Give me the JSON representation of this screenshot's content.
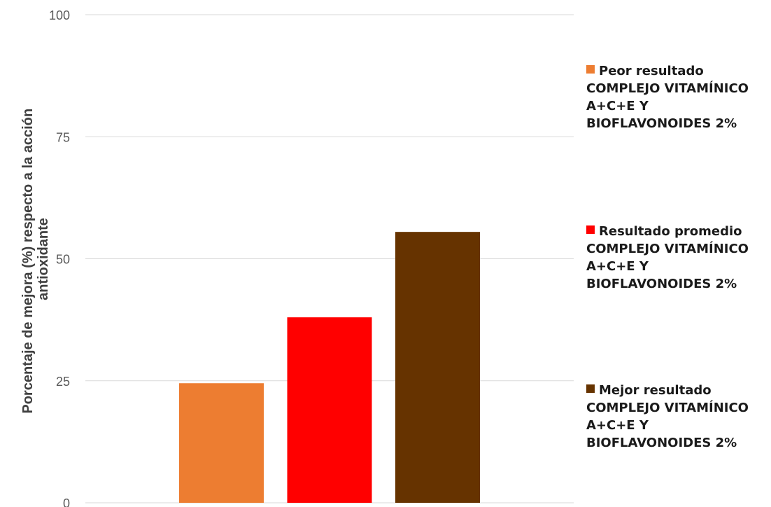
{
  "chart_data": {
    "type": "bar",
    "title": "",
    "xlabel": "",
    "ylabel_lines": [
      "Porcentaje de mejora (%) respecto a la acción",
      "antioxidante"
    ],
    "ylim": [
      0,
      100
    ],
    "yticks": [
      0,
      25,
      50,
      75,
      100
    ],
    "grid": true,
    "legend_position": "right",
    "series": [
      {
        "name_lines": [
          "Peor resultado",
          "COMPLEJO VITAMÍNICO",
          "A+C+E Y",
          "BIOFLAVONOIDES 2%"
        ],
        "value": 24.5,
        "color": "#ED7D31"
      },
      {
        "name_lines": [
          "Resultado promedio",
          "COMPLEJO VITAMÍNICO",
          "A+C+E Y",
          "BIOFLAVONOIDES 2%"
        ],
        "value": 38,
        "color": "#FF0000"
      },
      {
        "name_lines": [
          "Mejor resultado",
          "COMPLEJO VITAMÍNICO",
          "A+C+E Y",
          "BIOFLAVONOIDES 2%"
        ],
        "value": 55.5,
        "color": "#663300"
      }
    ]
  }
}
